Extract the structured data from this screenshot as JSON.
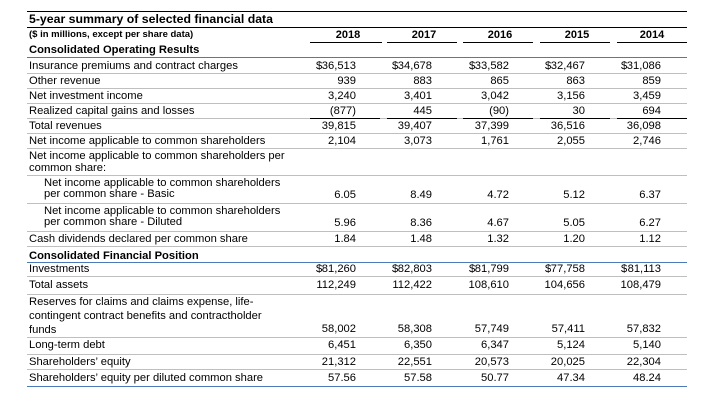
{
  "title": "5-year summary of selected financial data",
  "subtitle": "($ in millions, except per share data)",
  "years": [
    "2018",
    "2017",
    "2016",
    "2015",
    "2014"
  ],
  "currency_symbol": "$",
  "sections": {
    "operating": "Consolidated Operating Results",
    "position": "Consolidated Financial Position"
  },
  "rows": [
    {
      "label": "Insurance premiums and contract charges",
      "values": [
        "36,513",
        "34,678",
        "33,582",
        "32,467",
        "31,086"
      ]
    },
    {
      "label": "Other revenue",
      "values": [
        "939",
        "883",
        "865",
        "863",
        "859"
      ]
    },
    {
      "label": "Net investment income",
      "values": [
        "3,240",
        "3,401",
        "3,042",
        "3,156",
        "3,459"
      ]
    },
    {
      "label": "Realized capital gains and losses",
      "values": [
        "(877)",
        "445",
        "(90)",
        "30",
        "694"
      ]
    },
    {
      "label": "Total revenues",
      "values": [
        "39,815",
        "39,407",
        "37,399",
        "36,516",
        "36,098"
      ]
    },
    {
      "label": "Net income applicable to common shareholders",
      "values": [
        "2,104",
        "3,073",
        "1,761",
        "2,055",
        "2,746"
      ]
    },
    {
      "label_line1": "Net income applicable to common shareholders per",
      "label_line2": "common share:"
    },
    {
      "label_line1": "Net income applicable to common shareholders",
      "label_line2": "per common share - Basic",
      "values": [
        "6.05",
        "8.49",
        "4.72",
        "5.12",
        "6.37"
      ]
    },
    {
      "label_line1": "Net income applicable to common shareholders",
      "label_line2": "per common share - Diluted",
      "values": [
        "5.96",
        "8.36",
        "4.67",
        "5.05",
        "6.27"
      ]
    },
    {
      "label": "Cash dividends declared per common share",
      "values": [
        "1.84",
        "1.48",
        "1.32",
        "1.20",
        "1.12"
      ]
    },
    {
      "label": "Investments",
      "values": [
        "81,260",
        "82,803",
        "81,799",
        "77,758",
        "81,113"
      ]
    },
    {
      "label": "Total assets",
      "values": [
        "112,249",
        "112,422",
        "108,610",
        "104,656",
        "108,479"
      ]
    },
    {
      "label_line1": "Reserves for claims and claims expense, life-",
      "label_line2": "contingent contract benefits and contractholder",
      "label_line3": "funds",
      "values": [
        "58,002",
        "58,308",
        "57,749",
        "57,411",
        "57,832"
      ]
    },
    {
      "label": "Long-term debt",
      "values": [
        "6,451",
        "6,350",
        "6,347",
        "5,124",
        "5,140"
      ]
    },
    {
      "label": "Shareholders’ equity",
      "values": [
        "21,312",
        "22,551",
        "20,573",
        "20,025",
        "22,304"
      ]
    },
    {
      "label": "Shareholders’ equity per diluted common share",
      "values": [
        "57.56",
        "57.58",
        "50.77",
        "47.34",
        "48.24"
      ]
    }
  ]
}
